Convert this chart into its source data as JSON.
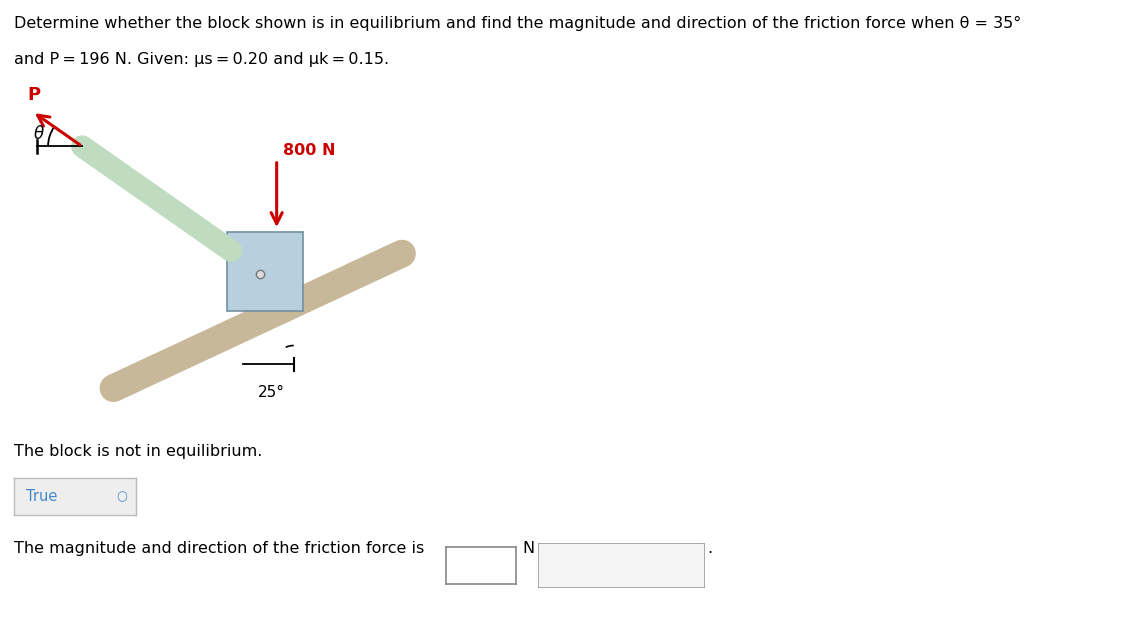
{
  "bg_color": "#ffffff",
  "block_color": "#b8cfe0",
  "block_edge_color": "#7090a0",
  "rod_color": "#c8b89a",
  "green_rod_color": "#c0dcc0",
  "arrow_color": "#cc0000",
  "text_color": "#000000",
  "blue_text_color": "#4488cc",
  "title_line1": "Determine whether the block shown is in equilibrium and find the magnitude and direction of the friction force when θ = 35°",
  "title_line2": "and P = 196 N. Given: μs = 0.20 and μk = 0.15.",
  "label_800N": "800 N",
  "label_P": "P",
  "label_theta": "θ",
  "label_25deg": "25°",
  "label_equilibrium": "The block is not in equilibrium.",
  "label_true": "True",
  "label_magnitude": "The magnitude and direction of the friction force is",
  "label_N": "N",
  "title_fontsize": 11.5,
  "body_fontsize": 11.5
}
